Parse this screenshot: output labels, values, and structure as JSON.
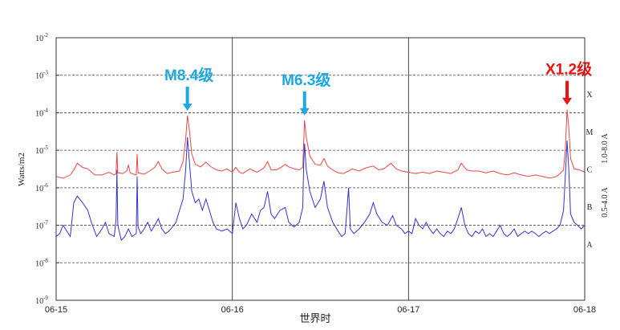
{
  "chart_data": {
    "type": "line",
    "ylabel": "Watts/m2",
    "xlabel": "世界时",
    "y_scale": "log",
    "ylim": [
      1e-09,
      0.01
    ],
    "xlim": [
      0,
      3
    ],
    "y_ticks": [
      {
        "base": "10",
        "exp": "-2",
        "value": 0.01
      },
      {
        "base": "10",
        "exp": "-3",
        "value": 0.001
      },
      {
        "base": "10",
        "exp": "-4",
        "value": 0.0001
      },
      {
        "base": "10",
        "exp": "-5",
        "value": 1e-05
      },
      {
        "base": "10",
        "exp": "-6",
        "value": 1e-06
      },
      {
        "base": "10",
        "exp": "-7",
        "value": 1e-07
      },
      {
        "base": "10",
        "exp": "-8",
        "value": 1e-08
      },
      {
        "base": "10",
        "exp": "-9",
        "value": 1e-09
      }
    ],
    "x_ticks": [
      {
        "label": "06-15",
        "value": 0
      },
      {
        "label": "06-16",
        "value": 1
      },
      {
        "label": "06-17",
        "value": 2
      },
      {
        "label": "06-18",
        "value": 3
      }
    ],
    "class_labels": [
      {
        "label": "X",
        "value": 0.0001
      },
      {
        "label": "M",
        "value": 1e-05
      },
      {
        "label": "C",
        "value": 1e-06
      },
      {
        "label": "B",
        "value": 1e-07
      },
      {
        "label": "A",
        "value": 1e-08
      }
    ],
    "grid": true,
    "series": [
      {
        "name": "1.0-8.0 A",
        "color": "#ee4444",
        "points": [
          [
            0.0,
            2e-06
          ],
          [
            0.04,
            1.8e-06
          ],
          [
            0.08,
            2.2e-06
          ],
          [
            0.1,
            3e-06
          ],
          [
            0.12,
            4.5e-06
          ],
          [
            0.15,
            3.5e-06
          ],
          [
            0.18,
            3.2e-06
          ],
          [
            0.22,
            2.2e-06
          ],
          [
            0.26,
            2.2e-06
          ],
          [
            0.3,
            2.6e-06
          ],
          [
            0.33,
            2.2e-06
          ],
          [
            0.34,
            2.4e-06
          ],
          [
            0.345,
            9e-06
          ],
          [
            0.35,
            2.5e-06
          ],
          [
            0.38,
            2.4e-06
          ],
          [
            0.4,
            2.8e-06
          ],
          [
            0.41,
            4e-06
          ],
          [
            0.42,
            2.5e-06
          ],
          [
            0.44,
            2.3e-06
          ],
          [
            0.455,
            2.2e-06
          ],
          [
            0.46,
            8e-06
          ],
          [
            0.465,
            2.5e-06
          ],
          [
            0.5,
            2.3e-06
          ],
          [
            0.53,
            2.8e-06
          ],
          [
            0.56,
            3.5e-06
          ],
          [
            0.58,
            5e-06
          ],
          [
            0.6,
            3.2e-06
          ],
          [
            0.63,
            2.4e-06
          ],
          [
            0.66,
            2.6e-06
          ],
          [
            0.7,
            2.8e-06
          ],
          [
            0.72,
            5e-06
          ],
          [
            0.735,
            2e-05
          ],
          [
            0.745,
            8.4e-05
          ],
          [
            0.755,
            4e-05
          ],
          [
            0.77,
            8e-06
          ],
          [
            0.79,
            4.2e-06
          ],
          [
            0.82,
            3.6e-06
          ],
          [
            0.85,
            4.8e-06
          ],
          [
            0.88,
            3.6e-06
          ],
          [
            0.91,
            3e-06
          ],
          [
            0.94,
            2.8e-06
          ],
          [
            0.97,
            3.2e-06
          ],
          [
            1.0,
            2.6e-06
          ],
          [
            1.02,
            3.5e-06
          ],
          [
            1.04,
            2.6e-06
          ],
          [
            1.06,
            2.4e-06
          ],
          [
            1.1,
            3.2e-06
          ],
          [
            1.14,
            2.6e-06
          ],
          [
            1.18,
            3.4e-06
          ],
          [
            1.2,
            5e-06
          ],
          [
            1.22,
            3e-06
          ],
          [
            1.25,
            3e-06
          ],
          [
            1.28,
            3.6e-06
          ],
          [
            1.3,
            4.2e-06
          ],
          [
            1.32,
            3.6e-06
          ],
          [
            1.35,
            3.2e-06
          ],
          [
            1.38,
            3e-06
          ],
          [
            1.4,
            3.5e-06
          ],
          [
            1.405,
            1.5e-05
          ],
          [
            1.41,
            6.3e-05
          ],
          [
            1.42,
            2.2e-05
          ],
          [
            1.44,
            7e-06
          ],
          [
            1.47,
            4.2e-06
          ],
          [
            1.5,
            4e-06
          ],
          [
            1.52,
            6e-06
          ],
          [
            1.54,
            3.8e-06
          ],
          [
            1.57,
            3e-06
          ],
          [
            1.6,
            2.5e-06
          ],
          [
            1.63,
            2.4e-06
          ],
          [
            1.66,
            2.8e-06
          ],
          [
            1.68,
            3.2e-06
          ],
          [
            1.72,
            2.8e-06
          ],
          [
            1.76,
            3.4e-06
          ],
          [
            1.8,
            3.8e-06
          ],
          [
            1.83,
            3e-06
          ],
          [
            1.86,
            3.2e-06
          ],
          [
            1.9,
            4.5e-06
          ],
          [
            1.93,
            3.2e-06
          ],
          [
            1.96,
            2.8e-06
          ],
          [
            2.0,
            2.6e-06
          ],
          [
            2.04,
            2.4e-06
          ],
          [
            2.08,
            2.6e-06
          ],
          [
            2.12,
            2.4e-06
          ],
          [
            2.16,
            2.8e-06
          ],
          [
            2.2,
            2.6e-06
          ],
          [
            2.24,
            2.4e-06
          ],
          [
            2.28,
            3e-06
          ],
          [
            2.3,
            4.5e-06
          ],
          [
            2.33,
            3e-06
          ],
          [
            2.36,
            2.8e-06
          ],
          [
            2.4,
            2.8e-06
          ],
          [
            2.44,
            2.5e-06
          ],
          [
            2.48,
            2.8e-06
          ],
          [
            2.52,
            2.4e-06
          ],
          [
            2.56,
            2.2e-06
          ],
          [
            2.6,
            2.5e-06
          ],
          [
            2.64,
            2.2e-06
          ],
          [
            2.68,
            2e-06
          ],
          [
            2.72,
            2.2e-06
          ],
          [
            2.76,
            2e-06
          ],
          [
            2.8,
            1.8e-06
          ],
          [
            2.84,
            2e-06
          ],
          [
            2.86,
            2.4e-06
          ],
          [
            2.88,
            3e-06
          ],
          [
            2.89,
            1e-05
          ],
          [
            2.9,
            0.00012
          ],
          [
            2.91,
            4e-05
          ],
          [
            2.92,
            6e-06
          ],
          [
            2.94,
            3.2e-06
          ],
          [
            2.97,
            3e-06
          ],
          [
            3.0,
            2.6e-06
          ]
        ]
      },
      {
        "name": "0.5-4.0 A",
        "color": "#3333cc",
        "points": [
          [
            0.0,
            5e-08
          ],
          [
            0.02,
            6e-08
          ],
          [
            0.04,
            1e-07
          ],
          [
            0.06,
            7e-08
          ],
          [
            0.08,
            5e-08
          ],
          [
            0.1,
            4e-07
          ],
          [
            0.12,
            6e-07
          ],
          [
            0.15,
            4e-07
          ],
          [
            0.18,
            2.5e-07
          ],
          [
            0.2,
            1.2e-07
          ],
          [
            0.23,
            5e-08
          ],
          [
            0.26,
            8e-08
          ],
          [
            0.28,
            1.2e-07
          ],
          [
            0.3,
            6e-08
          ],
          [
            0.33,
            5e-08
          ],
          [
            0.34,
            1.5e-07
          ],
          [
            0.345,
            3e-06
          ],
          [
            0.35,
            1e-07
          ],
          [
            0.37,
            4e-08
          ],
          [
            0.39,
            5e-08
          ],
          [
            0.41,
            8e-08
          ],
          [
            0.43,
            5e-08
          ],
          [
            0.455,
            6e-08
          ],
          [
            0.46,
            2e-06
          ],
          [
            0.465,
            9e-08
          ],
          [
            0.48,
            6e-08
          ],
          [
            0.5,
            8e-08
          ],
          [
            0.52,
            1.2e-07
          ],
          [
            0.54,
            7e-08
          ],
          [
            0.56,
            1e-07
          ],
          [
            0.58,
            1.5e-07
          ],
          [
            0.6,
            8e-08
          ],
          [
            0.62,
            6e-08
          ],
          [
            0.64,
            7e-08
          ],
          [
            0.66,
            9e-08
          ],
          [
            0.68,
            1.2e-07
          ],
          [
            0.7,
            2.5e-07
          ],
          [
            0.72,
            5e-07
          ],
          [
            0.735,
            3e-06
          ],
          [
            0.745,
            2.2e-05
          ],
          [
            0.755,
            6e-06
          ],
          [
            0.77,
            8e-07
          ],
          [
            0.79,
            4e-07
          ],
          [
            0.81,
            5e-07
          ],
          [
            0.83,
            2.5e-07
          ],
          [
            0.85,
            5e-07
          ],
          [
            0.87,
            2.5e-07
          ],
          [
            0.89,
            1.2e-07
          ],
          [
            0.91,
            8e-08
          ],
          [
            0.94,
            7e-08
          ],
          [
            0.97,
            8e-08
          ],
          [
            1.0,
            6e-08
          ],
          [
            1.02,
            4e-07
          ],
          [
            1.04,
            1.5e-07
          ],
          [
            1.06,
            8e-08
          ],
          [
            1.08,
            1e-07
          ],
          [
            1.11,
            2e-07
          ],
          [
            1.14,
            1.2e-07
          ],
          [
            1.16,
            2.5e-07
          ],
          [
            1.18,
            3e-07
          ],
          [
            1.2,
            8e-07
          ],
          [
            1.22,
            2e-07
          ],
          [
            1.24,
            1.5e-07
          ],
          [
            1.27,
            2.5e-07
          ],
          [
            1.3,
            3e-07
          ],
          [
            1.32,
            1.2e-07
          ],
          [
            1.35,
            9e-08
          ],
          [
            1.38,
            1.2e-07
          ],
          [
            1.4,
            3e-07
          ],
          [
            1.405,
            4e-06
          ],
          [
            1.41,
            1.5e-05
          ],
          [
            1.42,
            3e-06
          ],
          [
            1.44,
            8e-07
          ],
          [
            1.47,
            3e-07
          ],
          [
            1.5,
            5e-07
          ],
          [
            1.52,
            1.5e-06
          ],
          [
            1.54,
            3e-07
          ],
          [
            1.57,
            1.2e-07
          ],
          [
            1.6,
            7e-08
          ],
          [
            1.62,
            5e-08
          ],
          [
            1.64,
            6e-08
          ],
          [
            1.66,
            1e-06
          ],
          [
            1.67,
            8e-08
          ],
          [
            1.69,
            6e-08
          ],
          [
            1.72,
            8e-08
          ],
          [
            1.75,
            1.2e-07
          ],
          [
            1.78,
            2e-07
          ],
          [
            1.8,
            4e-07
          ],
          [
            1.82,
            2e-07
          ],
          [
            1.85,
            1.2e-07
          ],
          [
            1.88,
            1e-07
          ],
          [
            1.91,
            1.8e-07
          ],
          [
            1.93,
            1e-07
          ],
          [
            1.96,
            8e-08
          ],
          [
            1.98,
            6e-08
          ],
          [
            2.0,
            7e-08
          ],
          [
            2.02,
            6e-08
          ],
          [
            2.04,
            1.5e-07
          ],
          [
            2.06,
            1e-07
          ],
          [
            2.08,
            8e-08
          ],
          [
            2.1,
            1.2e-07
          ],
          [
            2.12,
            8e-08
          ],
          [
            2.14,
            6e-08
          ],
          [
            2.16,
            8e-08
          ],
          [
            2.18,
            6e-08
          ],
          [
            2.2,
            5e-08
          ],
          [
            2.22,
            7e-08
          ],
          [
            2.24,
            6e-08
          ],
          [
            2.26,
            8e-08
          ],
          [
            2.28,
            1.5e-07
          ],
          [
            2.3,
            3e-07
          ],
          [
            2.32,
            1e-07
          ],
          [
            2.34,
            6e-08
          ],
          [
            2.36,
            5e-08
          ],
          [
            2.38,
            7e-08
          ],
          [
            2.4,
            6e-08
          ],
          [
            2.42,
            8e-08
          ],
          [
            2.44,
            5e-08
          ],
          [
            2.46,
            6e-08
          ],
          [
            2.48,
            5e-08
          ],
          [
            2.5,
            7e-08
          ],
          [
            2.52,
            1e-07
          ],
          [
            2.54,
            6e-08
          ],
          [
            2.56,
            5e-08
          ],
          [
            2.58,
            6e-08
          ],
          [
            2.6,
            8e-08
          ],
          [
            2.62,
            5e-08
          ],
          [
            2.64,
            6e-08
          ],
          [
            2.66,
            7e-08
          ],
          [
            2.68,
            6e-08
          ],
          [
            2.7,
            7e-08
          ],
          [
            2.72,
            6e-08
          ],
          [
            2.74,
            5e-08
          ],
          [
            2.76,
            6e-08
          ],
          [
            2.78,
            7e-08
          ],
          [
            2.8,
            6e-08
          ],
          [
            2.82,
            7e-08
          ],
          [
            2.84,
            8e-08
          ],
          [
            2.86,
            1e-07
          ],
          [
            2.88,
            2.5e-07
          ],
          [
            2.89,
            2e-06
          ],
          [
            2.9,
            1.8e-05
          ],
          [
            2.91,
            3e-06
          ],
          [
            2.92,
            2e-07
          ],
          [
            2.94,
            1.2e-07
          ],
          [
            2.96,
            1e-07
          ],
          [
            2.98,
            8e-08
          ],
          [
            3.0,
            1e-07
          ]
        ]
      }
    ],
    "annotations": [
      {
        "text": "M8.4级",
        "x": 0.745,
        "value": 8.4e-05,
        "color": "#1fa8e0"
      },
      {
        "text": "M6.3级",
        "x": 1.41,
        "value": 6.3e-05,
        "color": "#1fa8e0"
      },
      {
        "text": "X1.2级",
        "x": 2.9,
        "value": 0.00012,
        "color": "#ee1111"
      }
    ]
  }
}
